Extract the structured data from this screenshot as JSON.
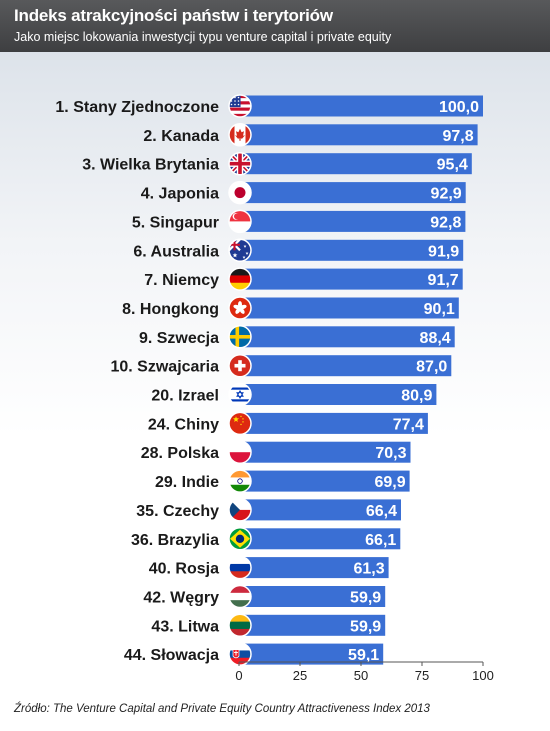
{
  "header": {
    "title": "Indeks atrakcyjności państw i terytoriów",
    "subtitle": "Jako miejsc lokowania inwestycji typu venture capital i private equity"
  },
  "source": "Źródło: The Venture Capital and Private Equity Country Attractiveness Index 2013",
  "colors": {
    "bar": "#3a6fd4",
    "header": "#4a4b4d",
    "axis": "#555555"
  },
  "chart_data": {
    "type": "bar",
    "orientation": "horizontal",
    "title": "Indeks atrakcyjności państw i terytoriów",
    "subtitle": "Jako miejsc lokowania inwestycji typu venture capital i private equity",
    "xlabel": "",
    "ylabel": "",
    "xlim": [
      0,
      100
    ],
    "xticks": [
      0,
      25,
      50,
      75,
      100
    ],
    "grid": false,
    "categories": [
      "1. Stany Zjednoczone",
      "2. Kanada",
      "3. Wielka Brytania",
      "4. Japonia",
      "5. Singapur",
      "6. Australia",
      "7. Niemcy",
      "8. Hongkong",
      "9. Szwecja",
      "10. Szwajcaria",
      "20. Izrael",
      "24. Chiny",
      "28. Polska",
      "29. Indie",
      "35. Czechy",
      "36. Brazylia",
      "40. Rosja",
      "42. Węgry",
      "43. Litwa",
      "44. Słowacja"
    ],
    "values": [
      100.0,
      97.8,
      95.4,
      92.9,
      92.8,
      91.9,
      91.7,
      90.1,
      88.4,
      87.0,
      80.9,
      77.4,
      70.3,
      69.9,
      66.4,
      66.1,
      61.3,
      59.9,
      59.9,
      59.1
    ],
    "value_labels": [
      "100,0",
      "97,8",
      "95,4",
      "92,9",
      "92,8",
      "91,9",
      "91,7",
      "90,1",
      "88,4",
      "87,0",
      "80,9",
      "77,4",
      "70,3",
      "69,9",
      "66,4",
      "66,1",
      "61,3",
      "59,9",
      "59,9",
      "59,1"
    ],
    "tick_labels": [
      "0",
      "25",
      "50",
      "75",
      "100"
    ],
    "flags": [
      "usa",
      "canada",
      "uk",
      "japan",
      "singapore",
      "australia",
      "germany",
      "hongkong",
      "sweden",
      "switzerland",
      "israel",
      "china",
      "poland",
      "india",
      "czech",
      "brazil",
      "russia",
      "hungary",
      "lithuania",
      "slovakia"
    ]
  }
}
